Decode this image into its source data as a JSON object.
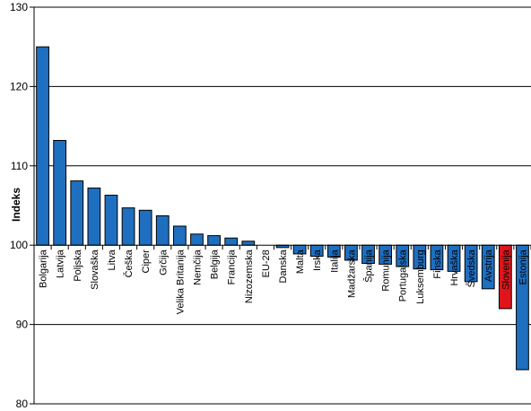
{
  "chart_data": {
    "type": "bar",
    "title": "",
    "xlabel": "",
    "ylabel": "Indeks",
    "ylim": [
      80,
      130
    ],
    "yticks": [
      80,
      90,
      100,
      110,
      120,
      130
    ],
    "baseline": 100,
    "grid": true,
    "categories": [
      "Bolgarija",
      "Latvija",
      "Poljska",
      "Slovaška",
      "Litva",
      "Češka",
      "Ciper",
      "Grčija",
      "Velika Britanija",
      "Nemčija",
      "Belgija",
      "Francija",
      "Nizozemska",
      "EU-28",
      "Danska",
      "Malta",
      "Irska",
      "Italija",
      "Madžarska",
      "Španija",
      "Romunija",
      "Portugalska",
      "Luksemburg",
      "Finska",
      "Hrvaška",
      "Švedska",
      "Avstrija",
      "Slovenija",
      "Estonija"
    ],
    "values": [
      125.0,
      113.2,
      108.1,
      107.2,
      106.3,
      104.7,
      104.4,
      103.7,
      102.4,
      101.4,
      101.2,
      100.9,
      100.5,
      100.0,
      99.7,
      98.9,
      98.6,
      98.5,
      98.1,
      97.7,
      97.6,
      97.3,
      97.0,
      96.9,
      96.7,
      95.4,
      94.5,
      92.0,
      84.3
    ],
    "colors": {
      "default": "#1f6fc0",
      "highlight": "#e0151b",
      "grid": "#000000"
    },
    "highlight": "Slovenija"
  }
}
